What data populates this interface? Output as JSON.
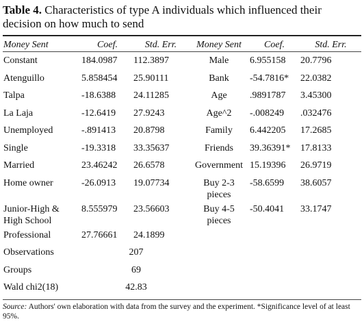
{
  "title": {
    "label": "Table 4.",
    "text": "Characteristics of type A individuals which influenced their decision on how much to send"
  },
  "table": {
    "header": [
      "Money Sent",
      "Coef.",
      "Std. Err.",
      "Money Sent",
      "Coef.",
      "Std. Err."
    ],
    "rows": [
      [
        "Constant",
        "184.0987",
        "112.3897",
        "Male",
        "6.955158",
        "20.7796"
      ],
      [
        "Atenguillo",
        "5.858454",
        "25.90111",
        "Bank",
        "-54.7816*",
        "22.0382"
      ],
      [
        "Talpa",
        "-18.6388",
        "24.11285",
        "Age",
        ".9891787",
        "3.45300"
      ],
      [
        "La Laja",
        "-12.6419",
        "27.9243",
        "Age^2",
        "-.008249",
        ".032476"
      ],
      [
        "Unemployed",
        "-.891413",
        "20.8798",
        "Family",
        "6.442205",
        "17.2685"
      ],
      [
        "Single",
        "-19.3318",
        "33.35637",
        "Friends",
        "39.36391*",
        "17.8133"
      ],
      [
        "Married",
        "23.46242",
        "26.6578",
        "Government",
        "15.19396",
        "26.9719"
      ],
      [
        "Home owner",
        "-26.0913",
        "19.07734",
        "Buy 2-3 pieces",
        "-58.6599",
        "38.6057"
      ],
      [
        "Junior-High & High School",
        "8.555979",
        "23.56603",
        "Buy 4-5 pieces",
        "-50.4041",
        "33.1747"
      ],
      [
        "Professional",
        "27.76661",
        "24.1899"
      ]
    ],
    "stats": [
      [
        "Observations",
        "207"
      ],
      [
        "Groups",
        "69"
      ],
      [
        "Wald chi2(18)",
        "42.83"
      ]
    ]
  },
  "footnote": {
    "label": "Source:",
    "text": "Authors' own elaboration with data from the survey and the experiment. *Significance level of at least 95%."
  }
}
